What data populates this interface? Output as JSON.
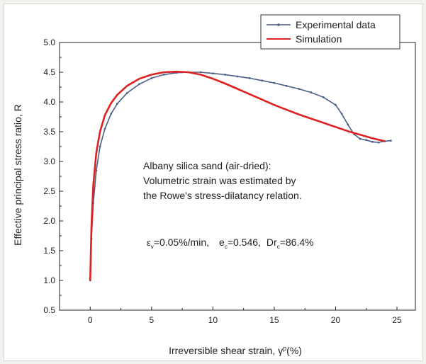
{
  "chart_data": {
    "type": "line",
    "xlabel": "Irreversible shear strain, γ",
    "xlabel_sup": "p",
    "xlabel_unit": "(%)",
    "ylabel": "Effective principal stress ratio, R",
    "xlim": [
      -2.5,
      26.5
    ],
    "ylim": [
      0.5,
      5.0
    ],
    "xticks": [
      0,
      5,
      10,
      15,
      20,
      25
    ],
    "yticks": [
      0.5,
      1.0,
      1.5,
      2.0,
      2.5,
      3.0,
      3.5,
      4.0,
      4.5,
      5.0
    ],
    "xtick_labels": [
      "0",
      "5",
      "10",
      "15",
      "20",
      "25"
    ],
    "ytick_labels": [
      "0.5",
      "1.0",
      "1.5",
      "2.0",
      "2.5",
      "3.0",
      "3.5",
      "4.0",
      "4.5",
      "5.0"
    ],
    "legend_position": "top-right",
    "annotations": {
      "line1": "Albany silica sand (air-dried):",
      "line2": "Volumetric strain was estimated by",
      "line3": "the Rowe's stress-dilatancy relation."
    },
    "conditions": {
      "eps_sym": "ε",
      "eps_sub": "v",
      "eps_value": "=0.05%/min,",
      "e_sym": "e",
      "e_sub": "c",
      "e_value": "=0.546,",
      "dr_sym": "Dr",
      "dr_sub": "c",
      "dr_value": "=86.4%"
    },
    "series": [
      {
        "name": "Experimental data",
        "color": "#4a5f86",
        "x": [
          0,
          0.1,
          0.25,
          0.5,
          0.8,
          1.2,
          1.7,
          2.2,
          3.0,
          4.0,
          5.0,
          6.0,
          7.0,
          8.0,
          9.0,
          10.0,
          11.0,
          12.0,
          13.0,
          14.0,
          15.0,
          16.0,
          17.0,
          18.0,
          19.0,
          20.0,
          20.5,
          21.0,
          21.5,
          22.0,
          22.5,
          23.0,
          23.5,
          24.0,
          24.5
        ],
        "y": [
          1.0,
          1.7,
          2.3,
          2.85,
          3.25,
          3.55,
          3.8,
          3.97,
          4.15,
          4.3,
          4.4,
          4.46,
          4.49,
          4.5,
          4.5,
          4.48,
          4.46,
          4.43,
          4.4,
          4.36,
          4.32,
          4.27,
          4.22,
          4.16,
          4.08,
          3.95,
          3.8,
          3.62,
          3.46,
          3.38,
          3.36,
          3.33,
          3.32,
          3.34,
          3.35
        ]
      },
      {
        "name": "Simulation",
        "color": "#e02020",
        "x": [
          0,
          0.1,
          0.25,
          0.5,
          0.8,
          1.2,
          1.7,
          2.2,
          3.0,
          4.0,
          5.0,
          6.0,
          7.0,
          8.0,
          9.0,
          10.0,
          11.0,
          12.0,
          13.0,
          14.0,
          15.0,
          16.0,
          17.0,
          18.0,
          19.0,
          20.0,
          21.0,
          22.0,
          23.0,
          24.0
        ],
        "y": [
          1.0,
          1.9,
          2.6,
          3.15,
          3.5,
          3.78,
          3.98,
          4.12,
          4.27,
          4.39,
          4.46,
          4.5,
          4.51,
          4.5,
          4.46,
          4.39,
          4.31,
          4.22,
          4.13,
          4.04,
          3.95,
          3.87,
          3.79,
          3.72,
          3.65,
          3.58,
          3.51,
          3.45,
          3.39,
          3.34
        ]
      }
    ]
  }
}
